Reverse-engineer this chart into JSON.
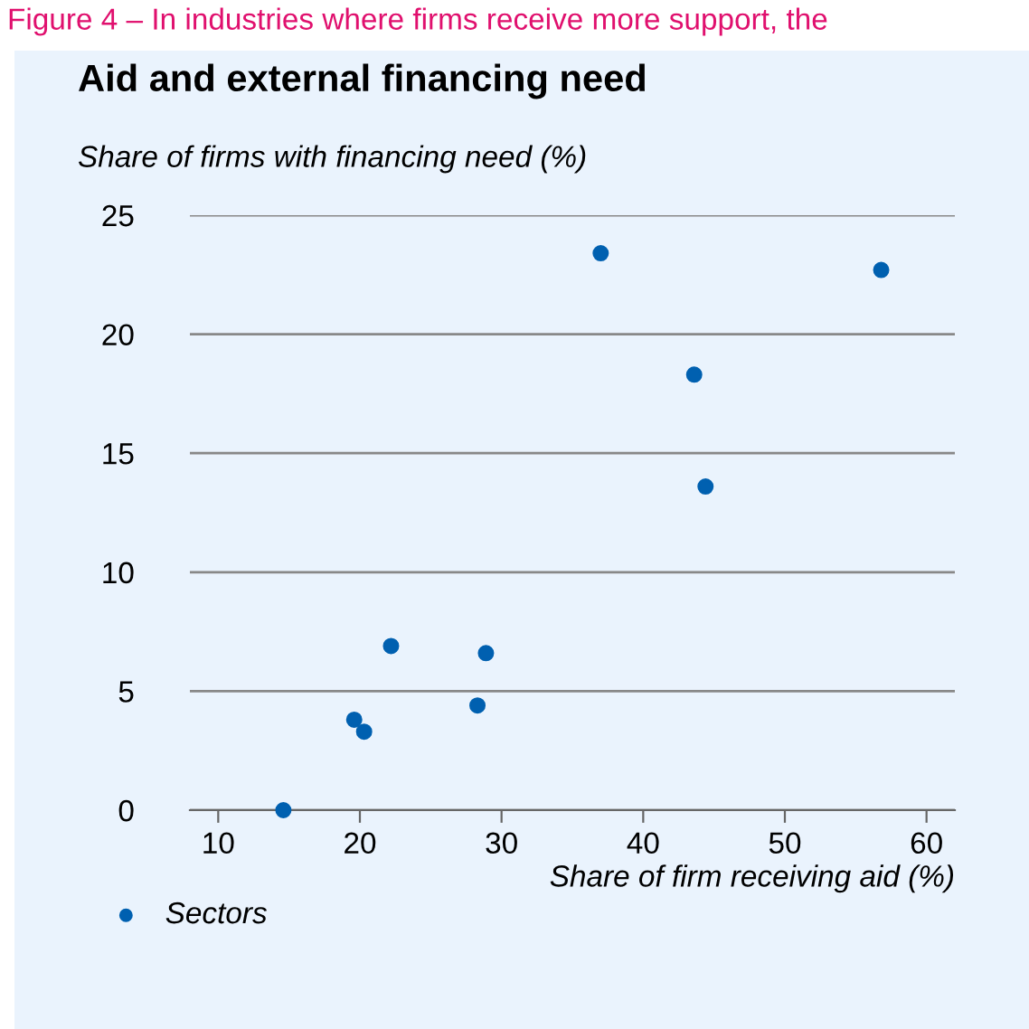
{
  "chart_data": {
    "type": "scatter",
    "title": "Aid and external financing need",
    "ylabel": "Share of firms with financing need (%)",
    "xlabel": "Share of firm receiving aid (%)",
    "annotations": [
      "Figure 4 – In industries where firms receive more support, the"
    ],
    "x": [
      37.0,
      56.8,
      43.6,
      44.4,
      22.2,
      28.9,
      28.3,
      19.6,
      20.3,
      14.6
    ],
    "series": [
      {
        "name": "Sectors",
        "color": "#0060b0",
        "values": [
          23.4,
          22.7,
          18.3,
          13.6,
          6.9,
          6.6,
          4.4,
          3.8,
          3.3,
          0.0
        ]
      }
    ],
    "xlim": [
      8,
      62
    ],
    "xticks": [
      10,
      20,
      30,
      40,
      50,
      60
    ],
    "ylim": [
      0,
      25
    ],
    "yticks": [
      0,
      5,
      10,
      15,
      20,
      25
    ],
    "grid": "y",
    "legend": "bottom left",
    "marker": "circle"
  }
}
